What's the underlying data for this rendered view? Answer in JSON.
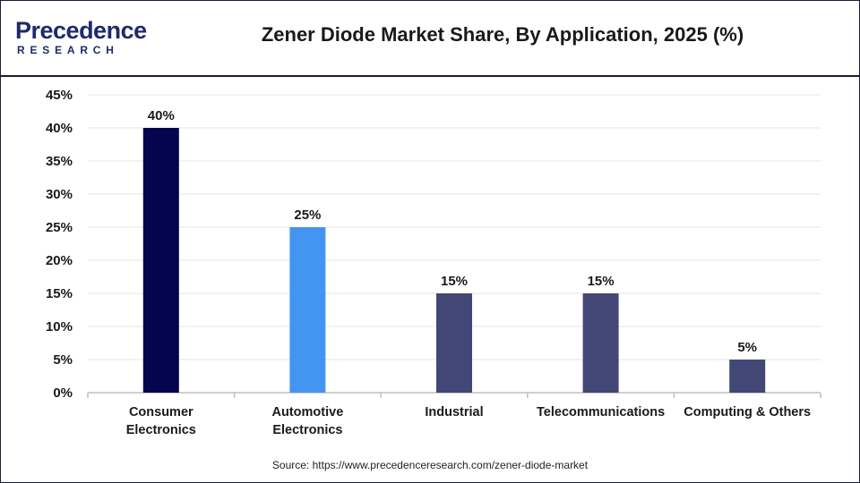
{
  "brand": {
    "name_main": "Precedence",
    "name_sub": "RESEARCH"
  },
  "title": "Zener Diode Market Share, By Application, 2025 (%)",
  "source": "Source: https://www.precedenceresearch.com/zener-diode-market",
  "colors": {
    "consumer": "#03054f",
    "automotive": "#4495f2",
    "others": "#424776",
    "axis": "#bfbfbf",
    "grid": "#e6e6e6",
    "header_rule": "#1c1c3a"
  },
  "chart_data": {
    "type": "bar",
    "title": "Zener Diode Market Share, By Application, 2025 (%)",
    "categories": [
      [
        "Consumer",
        "Electronics"
      ],
      [
        "Automotive",
        "Electronics"
      ],
      [
        "Industrial"
      ],
      [
        "Telecommunications"
      ],
      [
        "Computing & Others"
      ]
    ],
    "values": [
      40,
      25,
      15,
      15,
      5
    ],
    "value_labels": [
      "40%",
      "25%",
      "15%",
      "15%",
      "5%"
    ],
    "bar_colors": [
      "#03054f",
      "#4495f2",
      "#424776",
      "#424776",
      "#424776"
    ],
    "y_ticks": [
      0,
      5,
      10,
      15,
      20,
      25,
      30,
      35,
      40,
      45
    ],
    "y_tick_labels": [
      "0%",
      "5%",
      "10%",
      "15%",
      "20%",
      "25%",
      "30%",
      "35%",
      "40%",
      "45%"
    ],
    "ylim": [
      0,
      45
    ],
    "xlabel": "",
    "ylabel": "",
    "grid": true,
    "legend": false
  }
}
